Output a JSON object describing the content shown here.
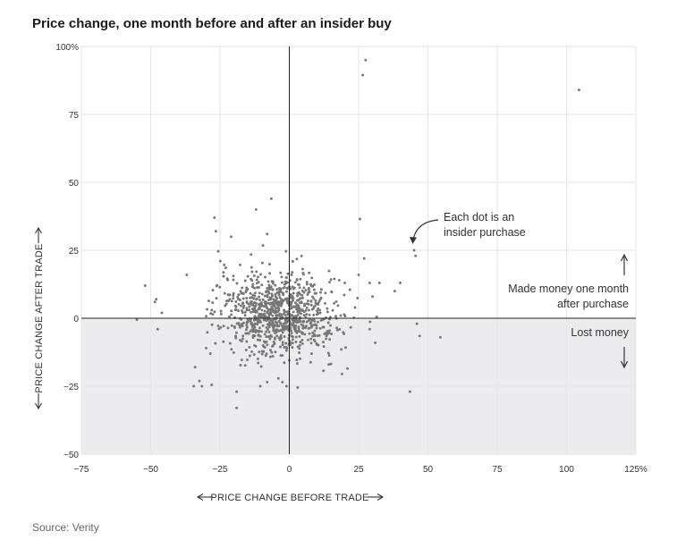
{
  "title": "Price change, one month before and after an insider buy",
  "source": "Source: Verity",
  "chart_data": {
    "type": "scatter",
    "title": "Price change, one month before and after an insider buy",
    "xlabel": "PRICE CHANGE BEFORE TRADE",
    "ylabel": "PRICE CHANGE AFTER TRADE",
    "xlim": [
      -75,
      125
    ],
    "ylim": [
      -50,
      100
    ],
    "grid": true,
    "shaded_region": "y < 0",
    "x_ticks": [
      -75,
      -50,
      -25,
      0,
      25,
      50,
      75,
      100,
      125
    ],
    "x_tick_labels": [
      "−75",
      "−50",
      "−25",
      "0",
      "25",
      "50",
      "75",
      "100",
      "125%"
    ],
    "y_ticks": [
      -50,
      -25,
      0,
      25,
      50,
      75,
      100
    ],
    "y_tick_labels": [
      "−50",
      "−25",
      "0",
      "25",
      "50",
      "75",
      "100%"
    ],
    "annotations": {
      "dot": [
        "Each dot is an",
        "insider purchase"
      ],
      "made": [
        "Made money one month",
        "after purchase"
      ],
      "lost": "Lost money"
    },
    "points": [
      [
        27.5,
        95
      ],
      [
        26.5,
        89.5
      ],
      [
        104.5,
        84
      ],
      [
        -6.5,
        44
      ],
      [
        -12.0,
        40
      ],
      [
        -27.0,
        37
      ],
      [
        25.5,
        36.5
      ],
      [
        -26.5,
        32
      ],
      [
        -21.0,
        30
      ],
      [
        -8.0,
        31
      ],
      [
        45.0,
        25
      ],
      [
        45.5,
        23
      ],
      [
        27.0,
        22
      ],
      [
        -37.0,
        16
      ],
      [
        -52.0,
        12
      ],
      [
        -48.0,
        7
      ],
      [
        -48.5,
        6
      ],
      [
        -46.0,
        2
      ],
      [
        -55.0,
        -0.5
      ],
      [
        -47.5,
        -4
      ],
      [
        -30.0,
        -11
      ],
      [
        -28.5,
        -13
      ],
      [
        -34.0,
        -18
      ],
      [
        -34.5,
        -25
      ],
      [
        -31.5,
        -25
      ],
      [
        -28.0,
        -24.5
      ],
      [
        -19.0,
        -27
      ],
      [
        -19.0,
        -33
      ],
      [
        -10.5,
        -25
      ],
      [
        -8.0,
        -23.5
      ],
      [
        -2.5,
        -23.5
      ],
      [
        -1.0,
        -25
      ],
      [
        3.0,
        -25.5
      ],
      [
        19.0,
        -20.5
      ],
      [
        21.0,
        -18.5
      ],
      [
        43.5,
        -27
      ],
      [
        54.5,
        -7
      ],
      [
        47.0,
        -6.5
      ],
      [
        46.0,
        -2
      ],
      [
        31.0,
        -9
      ],
      [
        29.0,
        -4
      ],
      [
        31.5,
        0.5
      ],
      [
        30.0,
        8
      ],
      [
        32.5,
        13
      ],
      [
        38.0,
        10
      ],
      [
        40.0,
        13
      ],
      [
        29.0,
        13
      ],
      [
        25.0,
        16
      ],
      [
        18.0,
        14
      ],
      [
        20.0,
        13
      ]
    ]
  }
}
